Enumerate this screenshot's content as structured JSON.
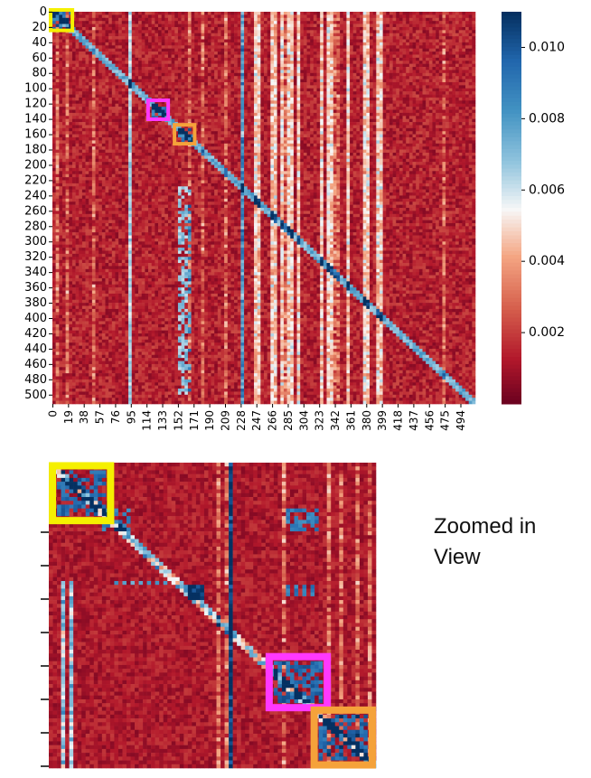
{
  "chart_data": [
    {
      "type": "heatmap",
      "title": "",
      "xlabel": "",
      "ylabel": "",
      "x_ticks": [
        "0",
        "19",
        "38",
        "57",
        "76",
        "95",
        "114",
        "133",
        "152",
        "171",
        "190",
        "209",
        "228",
        "247",
        "266",
        "285",
        "304",
        "323",
        "342",
        "361",
        "380",
        "399",
        "418",
        "437",
        "456",
        "475",
        "494"
      ],
      "y_ticks": [
        "0",
        "20",
        "40",
        "60",
        "80",
        "100",
        "120",
        "140",
        "160",
        "180",
        "200",
        "220",
        "240",
        "260",
        "280",
        "300",
        "320",
        "340",
        "360",
        "380",
        "400",
        "420",
        "440",
        "460",
        "480",
        "500"
      ],
      "matrix_size": 512,
      "colormap": "RdBu",
      "colorbar": {
        "ticks": [
          "0.002",
          "0.004",
          "0.006",
          "0.008",
          "0.010"
        ],
        "range": [
          0.0,
          0.011
        ]
      },
      "highlights": [
        {
          "color": "#f5f000",
          "x_range": [
            0,
            22
          ],
          "y_range": [
            0,
            22
          ]
        },
        {
          "color": "#ff38ff",
          "x_range": [
            118,
            138
          ],
          "y_range": [
            118,
            138
          ]
        },
        {
          "color": "#f5a23a",
          "x_range": [
            150,
            170
          ],
          "y_range": [
            150,
            170
          ]
        }
      ]
    },
    {
      "type": "heatmap",
      "title": "",
      "colormap": "RdBu",
      "annotation": "Zoomed in View",
      "y_tick_count": 8,
      "highlights": [
        {
          "color": "#f5f000",
          "corner": "top-left"
        },
        {
          "color": "#ff38ff",
          "corner": "lower-middle"
        },
        {
          "color": "#f5a23a",
          "corner": "bottom-right"
        }
      ]
    }
  ],
  "annotation": {
    "line1": "Zoomed in",
    "line2": "View"
  }
}
